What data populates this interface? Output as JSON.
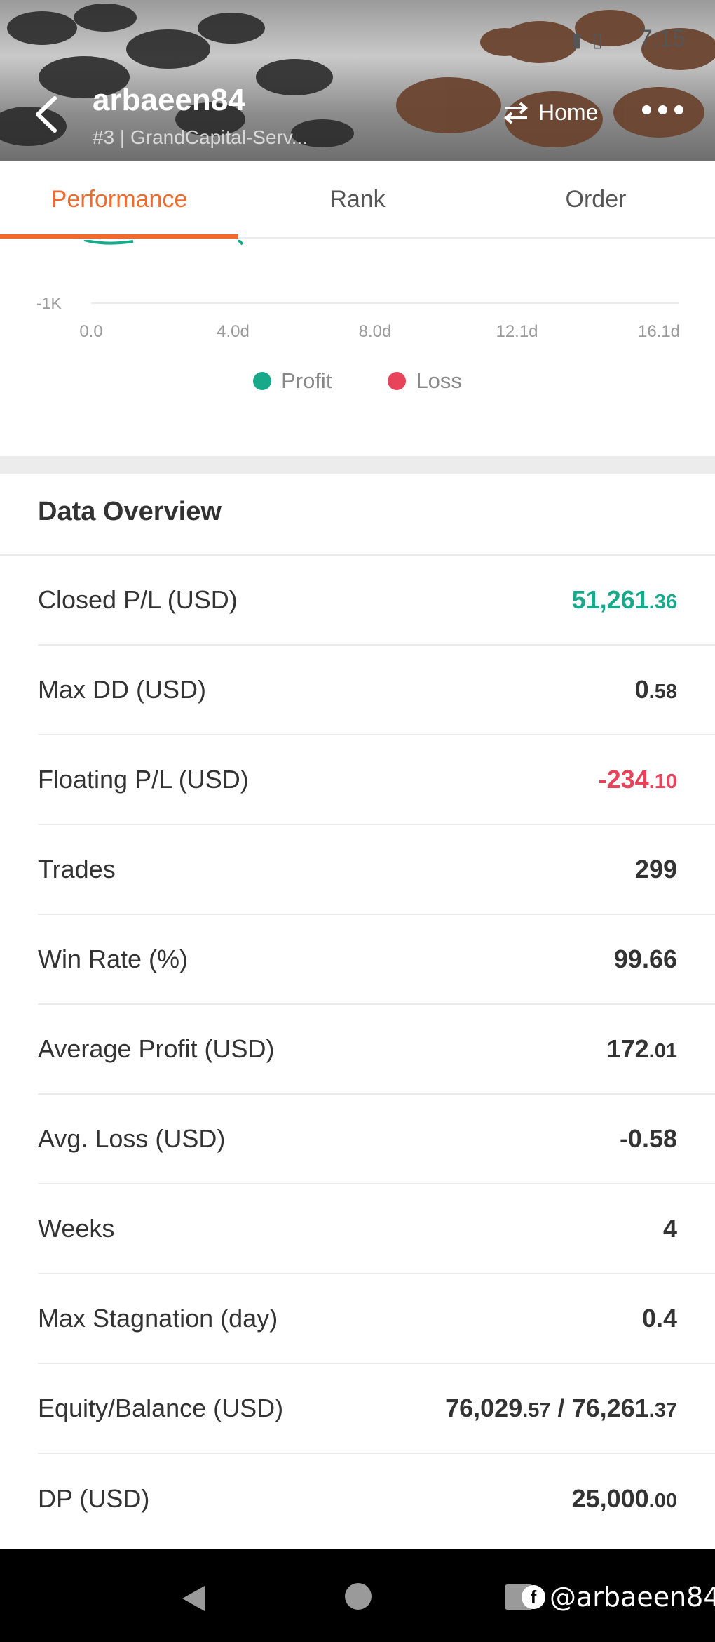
{
  "status_bar": {
    "time": "7:15",
    "icons": [
      "signal-icon",
      "battery-icon"
    ]
  },
  "header": {
    "user_name": "arbaeen84",
    "subtitle": "#3 | GrandCapital-Serv...",
    "home_label": "Home"
  },
  "tabs": [
    {
      "label": "Performance",
      "active": true
    },
    {
      "label": "Rank",
      "active": false
    },
    {
      "label": "Order",
      "active": false
    }
  ],
  "chart_data": {
    "type": "line",
    "y_tick_labels": [
      "-1K"
    ],
    "x_tick_labels": [
      "0.0",
      "4.0d",
      "8.0d",
      "12.1d",
      "16.1d"
    ],
    "legend": [
      "Profit",
      "Loss"
    ],
    "colors": {
      "profit": "#17a98a",
      "loss": "#e7435a"
    }
  },
  "overview": {
    "title": "Data Overview",
    "rows": [
      {
        "label": "Closed P/L (USD)",
        "int": "51,261",
        "dec": ".36",
        "tone": "green"
      },
      {
        "label": "Max DD (USD)",
        "int": "0",
        "dec": ".58",
        "tone": "normal"
      },
      {
        "label": "Floating P/L (USD)",
        "int": "-234",
        "dec": ".10",
        "tone": "red"
      },
      {
        "label": "Trades",
        "value": "299"
      },
      {
        "label": "Win Rate (%)",
        "value": "99.66"
      },
      {
        "label": "Average Profit (USD)",
        "int": "172",
        "dec": ".01",
        "tone": "normal"
      },
      {
        "label": "Avg. Loss (USD)",
        "value": "-0.58"
      },
      {
        "label": "Weeks",
        "value": "4"
      },
      {
        "label": "Max Stagnation (day)",
        "value": "0.4"
      },
      {
        "label": "Equity/Balance (USD)",
        "eq_int": "76,029",
        "eq_dec": ".57",
        "sep": "/",
        "bal_int": "76,261",
        "bal_dec": ".37"
      },
      {
        "label": "DP (USD)",
        "int": "25,000",
        "dec": ".00",
        "tone": "normal"
      }
    ]
  },
  "watermark": {
    "fb_letter": "f",
    "handle": "@arbaeen84"
  }
}
